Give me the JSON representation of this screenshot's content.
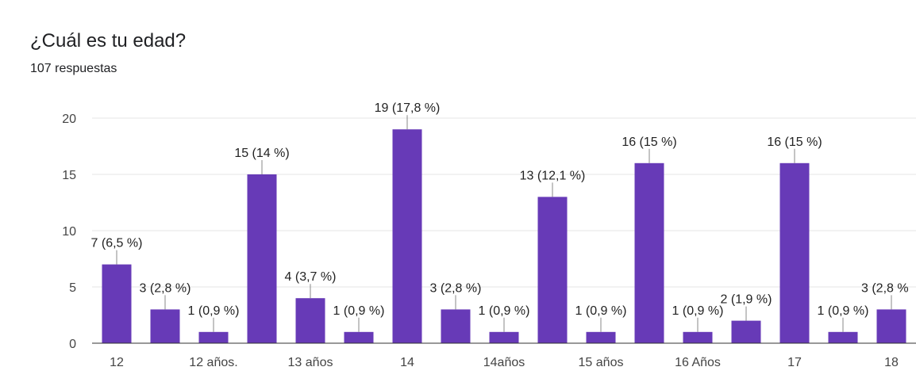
{
  "header": {
    "title": "¿Cuál es tu edad?",
    "responses": "107 respuestas"
  },
  "chart_data": {
    "type": "bar",
    "title": "¿Cuál es tu edad?",
    "xlabel": "",
    "ylabel": "",
    "ylim": [
      0,
      20
    ],
    "yticks": [
      "0",
      "5",
      "10",
      "15",
      "20"
    ],
    "grid": true,
    "bar_color": "#673ab7",
    "categories": [
      "12",
      "",
      "12 años.",
      "",
      "13 años",
      "",
      "14",
      "",
      "14años",
      "",
      "15 años",
      "",
      "16 Años",
      "",
      "17",
      "",
      "18"
    ],
    "values": [
      7,
      3,
      1,
      15,
      4,
      1,
      19,
      3,
      1,
      13,
      1,
      16,
      1,
      2,
      16,
      1,
      3
    ],
    "data_labels": [
      "7 (6,5 %)",
      "3 (2,8 %)",
      "1 (0,9 %)",
      "15 (14 %)",
      "4 (3,7 %)",
      "1 (0,9 %)",
      "19 (17,8 %)",
      "3 (2,8 %)",
      "1 (0,9 %)",
      "13 (12,1 %)",
      "1 (0,9 %)",
      "16 (15 %)",
      "1 (0,9 %)",
      "2 (1,9 %)",
      "16 (15 %)",
      "1 (0,9 %)",
      "3 (2,8 %"
    ]
  }
}
